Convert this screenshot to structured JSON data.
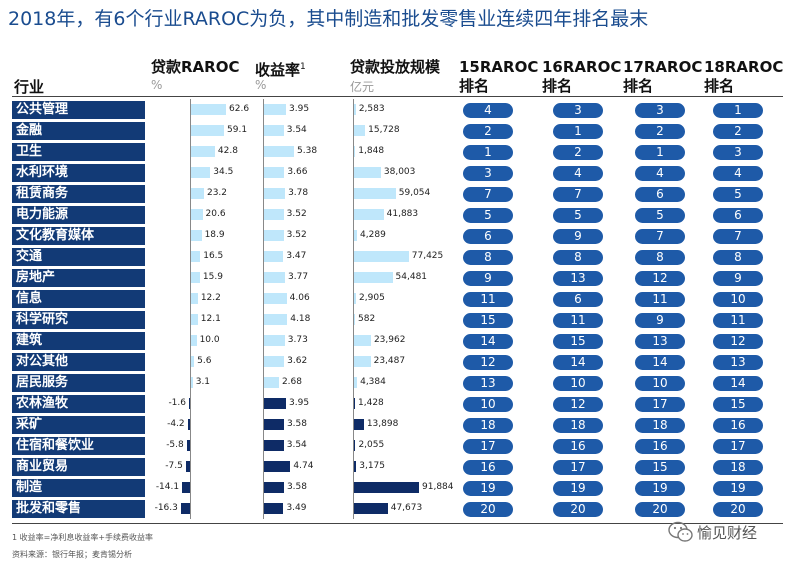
{
  "title": "2018年，有6个行业RAROC为负，其中制造和批发零售业连续四年排名最末",
  "headers": {
    "industry": "行业",
    "raroc": "贷款RAROC",
    "raroc_unit": "%",
    "yield": "收益率",
    "yield_sup": "1",
    "yield_unit": "%",
    "scale": "贷款投放规模",
    "scale_unit": "亿元",
    "r15": [
      "15RAROC",
      "排名"
    ],
    "r16": [
      "16RAROC",
      "排名"
    ],
    "r17": [
      "17RAROC",
      "排名"
    ],
    "r18": [
      "18RAROC",
      "排名"
    ]
  },
  "chart_data": {
    "type": "table",
    "columns": [
      "行业",
      "贷款RAROC %",
      "收益率 %",
      "贷款投放规模 亿元",
      "15RAROC排名",
      "16RAROC排名",
      "17RAROC排名",
      "18RAROC排名"
    ],
    "rows": [
      {
        "industry": "公共管理",
        "raroc": "62.6",
        "yield": "3.95",
        "scale": "2,583",
        "r15": "4",
        "r16": "3",
        "r17": "3",
        "r18": "1"
      },
      {
        "industry": "金融",
        "raroc": "59.1",
        "yield": "3.54",
        "scale": "15,728",
        "r15": "2",
        "r16": "1",
        "r17": "2",
        "r18": "2"
      },
      {
        "industry": "卫生",
        "raroc": "42.8",
        "yield": "5.38",
        "scale": "1,848",
        "r15": "1",
        "r16": "2",
        "r17": "1",
        "r18": "3"
      },
      {
        "industry": "水利环境",
        "raroc": "34.5",
        "yield": "3.66",
        "scale": "38,003",
        "r15": "3",
        "r16": "4",
        "r17": "4",
        "r18": "4"
      },
      {
        "industry": "租赁商务",
        "raroc": "23.2",
        "yield": "3.78",
        "scale": "59,054",
        "r15": "7",
        "r16": "7",
        "r17": "6",
        "r18": "5"
      },
      {
        "industry": "电力能源",
        "raroc": "20.6",
        "yield": "3.52",
        "scale": "41,883",
        "r15": "5",
        "r16": "5",
        "r17": "5",
        "r18": "6"
      },
      {
        "industry": "文化教育媒体",
        "raroc": "18.9",
        "yield": "3.52",
        "scale": "4,289",
        "r15": "6",
        "r16": "9",
        "r17": "7",
        "r18": "7"
      },
      {
        "industry": "交通",
        "raroc": "16.5",
        "yield": "3.47",
        "scale": "77,425",
        "r15": "8",
        "r16": "8",
        "r17": "8",
        "r18": "8"
      },
      {
        "industry": "房地产",
        "raroc": "15.9",
        "yield": "3.77",
        "scale": "54,481",
        "r15": "9",
        "r16": "13",
        "r17": "12",
        "r18": "9"
      },
      {
        "industry": "信息",
        "raroc": "12.2",
        "yield": "4.06",
        "scale": "2,905",
        "r15": "11",
        "r16": "6",
        "r17": "11",
        "r18": "10"
      },
      {
        "industry": "科学研究",
        "raroc": "12.1",
        "yield": "4.18",
        "scale": "582",
        "r15": "15",
        "r16": "11",
        "r17": "9",
        "r18": "11"
      },
      {
        "industry": "建筑",
        "raroc": "10.0",
        "yield": "3.73",
        "scale": "23,962",
        "r15": "14",
        "r16": "15",
        "r17": "13",
        "r18": "12"
      },
      {
        "industry": "对公其他",
        "raroc": "5.6",
        "yield": "3.62",
        "scale": "23,487",
        "r15": "12",
        "r16": "14",
        "r17": "14",
        "r18": "13"
      },
      {
        "industry": "居民服务",
        "raroc": "3.1",
        "yield": "2.68",
        "scale": "4,384",
        "r15": "13",
        "r16": "10",
        "r17": "10",
        "r18": "14"
      },
      {
        "industry": "农林渔牧",
        "raroc": "-1.6",
        "yield": "3.95",
        "scale": "1,428",
        "r15": "10",
        "r16": "12",
        "r17": "17",
        "r18": "15"
      },
      {
        "industry": "采矿",
        "raroc": "-4.2",
        "yield": "3.58",
        "scale": "13,898",
        "r15": "18",
        "r16": "18",
        "r17": "18",
        "r18": "16"
      },
      {
        "industry": "住宿和餐饮业",
        "raroc": "-5.8",
        "yield": "3.54",
        "scale": "2,055",
        "r15": "17",
        "r16": "16",
        "r17": "16",
        "r18": "17"
      },
      {
        "industry": "商业贸易",
        "raroc": "-7.5",
        "yield": "4.74",
        "scale": "3,175",
        "r15": "16",
        "r16": "17",
        "r17": "15",
        "r18": "18"
      },
      {
        "industry": "制造",
        "raroc": "-14.1",
        "yield": "3.58",
        "scale": "91,884",
        "r15": "19",
        "r16": "19",
        "r17": "19",
        "r18": "19"
      },
      {
        "industry": "批发和零售",
        "raroc": "-16.3",
        "yield": "3.49",
        "scale": "47,673",
        "r15": "20",
        "r16": "20",
        "r17": "20",
        "r18": "20"
      }
    ]
  },
  "colors": {
    "row_label_bg": "#123a76",
    "bar_positive": "#bfe7fb",
    "bar_negative": "#0e2b66",
    "rank_pill": "#1e5aa8"
  },
  "footnote": "1 收益率=净利息收益率+手续费收益率",
  "source": "资料来源：银行年报；麦肯锡分析",
  "logo": {
    "icon": "wechat-icon",
    "text": "愉见财经"
  }
}
